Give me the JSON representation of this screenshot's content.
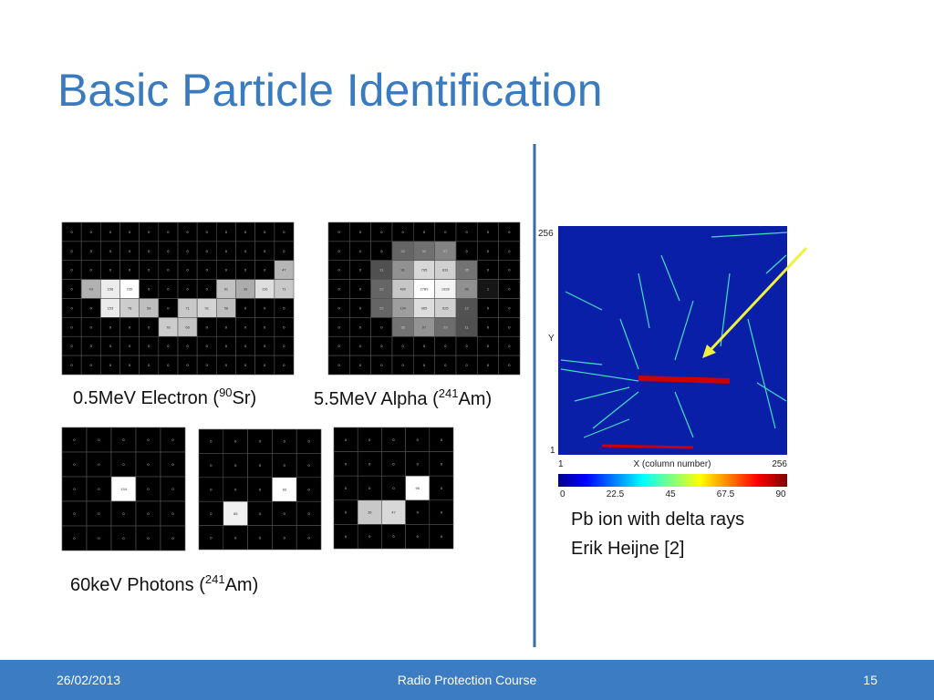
{
  "title": "Basic Particle Identification",
  "electron": {
    "caption": {
      "before": "0.5MeV Electron (",
      "sup": "90",
      "after": "Sr)"
    },
    "cells": [
      [
        0,
        0,
        0,
        0,
        0,
        0,
        0,
        0,
        0,
        0,
        0,
        0
      ],
      [
        0,
        0,
        0,
        0,
        0,
        0,
        0,
        0,
        0,
        0,
        0,
        0
      ],
      [
        0,
        0,
        0,
        0,
        0,
        0,
        0,
        0,
        0,
        0,
        0,
        47
      ],
      [
        0,
        43,
        156,
        235,
        0,
        0,
        0,
        0,
        61,
        39,
        116,
        71
      ],
      [
        0,
        0,
        153,
        78,
        58,
        0,
        71,
        91,
        58,
        0,
        0,
        0
      ],
      [
        0,
        0,
        0,
        0,
        0,
        78,
        66,
        0,
        0,
        0,
        0,
        0
      ],
      [
        0,
        0,
        0,
        0,
        0,
        0,
        0,
        0,
        0,
        0,
        0,
        0
      ],
      [
        0,
        0,
        0,
        0,
        0,
        0,
        0,
        0,
        0,
        0,
        0,
        0
      ]
    ]
  },
  "alpha": {
    "caption": {
      "before": "5.5MeV Alpha (",
      "sup": "241",
      "after": "Am)"
    },
    "cells": [
      [
        0,
        0,
        0,
        0,
        0,
        0,
        0,
        0,
        0
      ],
      [
        0,
        0,
        0,
        22,
        32,
        57,
        0,
        0,
        0
      ],
      [
        0,
        0,
        11,
        91,
        795,
        631,
        35,
        0,
        0
      ],
      [
        0,
        0,
        22,
        480,
        2789,
        1928,
        86,
        1,
        0
      ],
      [
        0,
        0,
        22,
        134,
        965,
        625,
        12,
        0,
        0
      ],
      [
        0,
        0,
        0,
        35,
        97,
        29,
        11,
        0,
        0
      ],
      [
        0,
        0,
        0,
        0,
        0,
        0,
        0,
        0,
        0
      ],
      [
        0,
        0,
        0,
        0,
        0,
        0,
        0,
        0,
        0
      ]
    ]
  },
  "photons": {
    "caption": {
      "before": "60keV Photons (",
      "sup": "241",
      "after": "Am)"
    },
    "grids": [
      [
        [
          0,
          0,
          0,
          0,
          0
        ],
        [
          0,
          0,
          0,
          0,
          0
        ],
        [
          0,
          0,
          134,
          0,
          0
        ],
        [
          0,
          0,
          0,
          0,
          0
        ],
        [
          0,
          0,
          0,
          0,
          0
        ]
      ],
      [
        [
          0,
          0,
          0,
          0,
          0
        ],
        [
          0,
          0,
          0,
          0,
          0
        ],
        [
          0,
          0,
          0,
          83,
          0
        ],
        [
          0,
          65,
          0,
          0,
          0
        ],
        [
          0,
          0,
          0,
          0,
          0
        ]
      ],
      [
        [
          0,
          0,
          0,
          0,
          0
        ],
        [
          0,
          0,
          0,
          0,
          0
        ],
        [
          0,
          0,
          0,
          96,
          0
        ],
        [
          0,
          35,
          47,
          0,
          0
        ],
        [
          0,
          0,
          0,
          0,
          0
        ]
      ]
    ]
  },
  "pb_ion": {
    "y_top": "256",
    "y_label": "Y",
    "y_bottom": "1",
    "x_left": "1",
    "x_label": "X (column number)",
    "x_right": "256",
    "colorbar_ticks": [
      0,
      22.5,
      45,
      67.5,
      90
    ],
    "caption": [
      "Pb ion with delta rays",
      "Erik Heijne [2]"
    ]
  },
  "footer": {
    "date": "26/02/2013",
    "course": "Radio Protection Course",
    "page": "15"
  }
}
